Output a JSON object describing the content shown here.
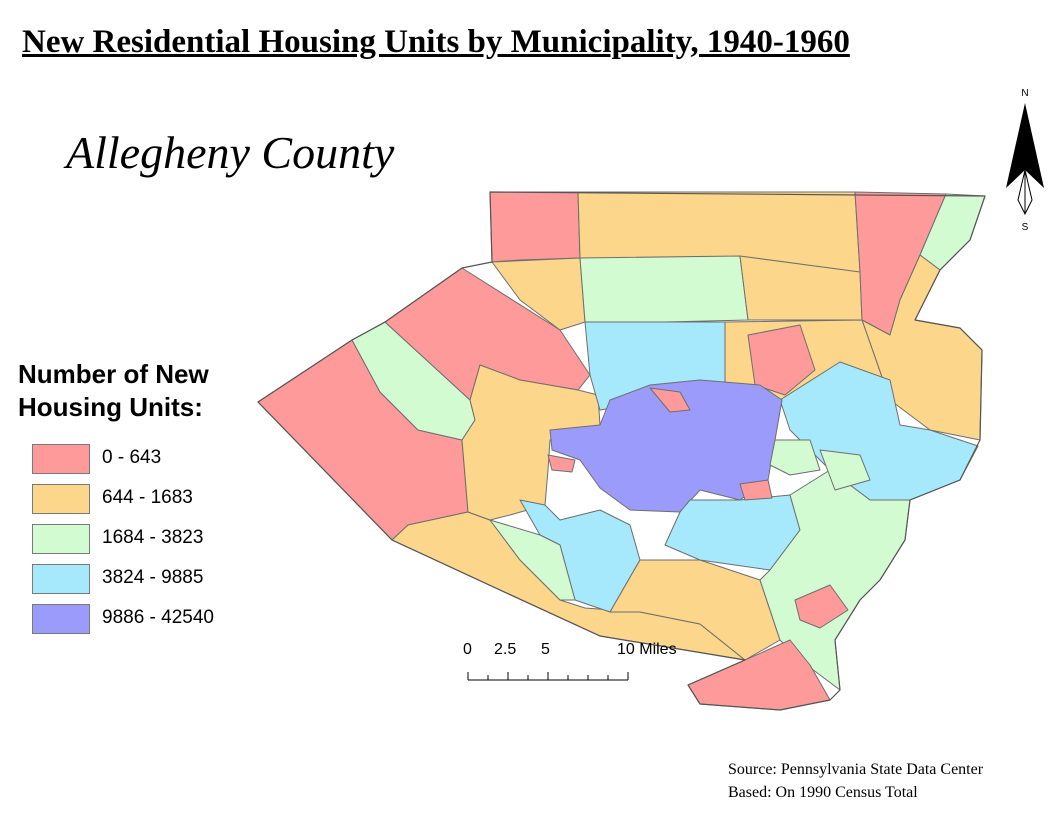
{
  "title": "New Residential Housing Units by Municipality, 1940-1960",
  "subtitle": "Allegheny County",
  "legend": {
    "title_line1": "Number of New",
    "title_line2": "Housing Units:",
    "classes": [
      {
        "label": "0 - 643",
        "color": "#ff9a9a"
      },
      {
        "label": "644 - 1683",
        "color": "#fcd68a"
      },
      {
        "label": "1684 - 3823",
        "color": "#d2fbd2"
      },
      {
        "label": "3824 - 9885",
        "color": "#a6e9fd"
      },
      {
        "label": "9886 - 42540",
        "color": "#9b9bfb"
      }
    ]
  },
  "scale_bar": {
    "labels": [
      "0",
      "2.5",
      "5",
      "10 Miles"
    ]
  },
  "north_arrow": {
    "north": "N",
    "south": "S",
    "icon": "north-arrow-icon"
  },
  "source": {
    "line1": "Source: Pennsylvania State Data Center",
    "line2": "Based: On 1990 Census Total"
  }
}
